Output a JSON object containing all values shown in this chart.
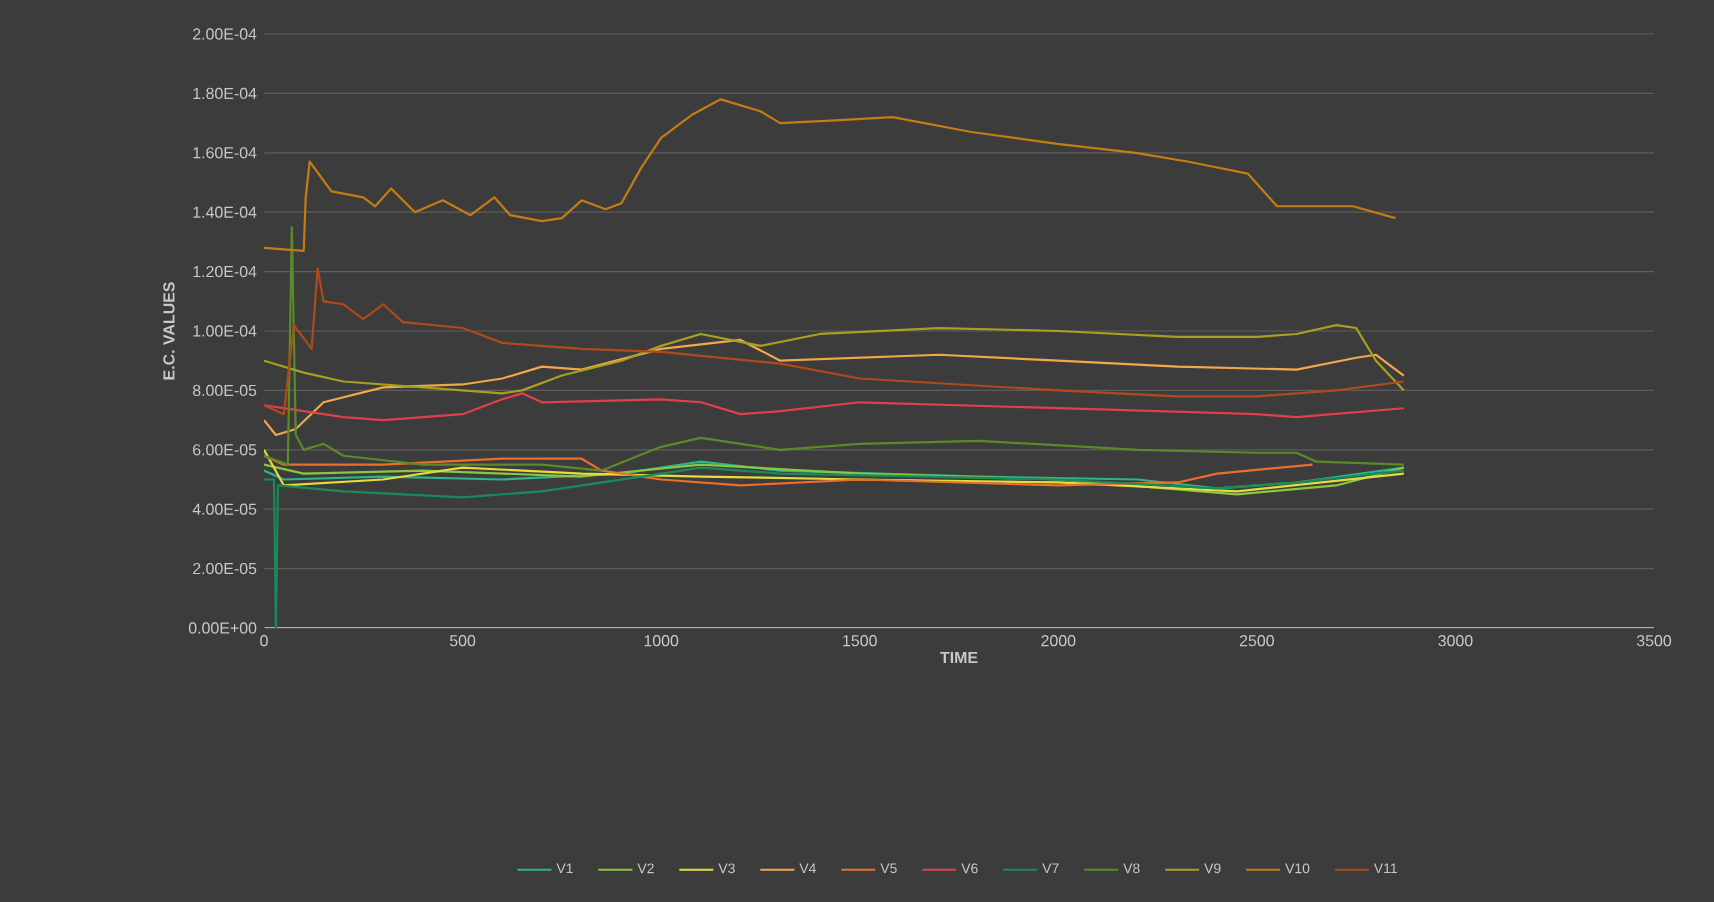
{
  "chart_data": {
    "type": "line",
    "xlabel": "TIME",
    "ylabel": "E.C. VALUES",
    "xlim": [
      0,
      3500
    ],
    "xticks": [
      0,
      500,
      1000,
      1500,
      2000,
      2500,
      3000,
      3500
    ],
    "ylim": [
      0,
      0.0002
    ],
    "yticks": [
      {
        "value": 0,
        "label": "0.00E+00"
      },
      {
        "value": 2e-05,
        "label": "2.00E-05"
      },
      {
        "value": 4e-05,
        "label": "4.00E-05"
      },
      {
        "value": 6e-05,
        "label": "6.00E-05"
      },
      {
        "value": 8e-05,
        "label": "8.00E-05"
      },
      {
        "value": 0.0001,
        "label": "1.00E-04"
      },
      {
        "value": 0.00012,
        "label": "1.20E-04"
      },
      {
        "value": 0.00014,
        "label": "1.40E-04"
      },
      {
        "value": 0.00016,
        "label": "1.60E-04"
      },
      {
        "value": 0.00018,
        "label": "1.80E-04"
      },
      {
        "value": 0.0002,
        "label": "2.00E-04"
      }
    ],
    "grid": "y",
    "legend": "bottom",
    "series": [
      {
        "name": "V1",
        "color": "#2bb58a",
        "x": [
          0,
          50,
          300,
          600,
          900,
          1100,
          1300,
          1800,
          2200,
          2400,
          2600,
          2870
        ],
        "values": [
          5.3e-05,
          5e-05,
          5.1e-05,
          5e-05,
          5.2e-05,
          5.6e-05,
          5.3e-05,
          5.1e-05,
          5e-05,
          4.7e-05,
          4.9e-05,
          5.4e-05
        ]
      },
      {
        "name": "V2",
        "color": "#8cc63f",
        "x": [
          0,
          100,
          400,
          800,
          1100,
          1500,
          2000,
          2450,
          2700,
          2870
        ],
        "values": [
          5.5e-05,
          5.2e-05,
          5.3e-05,
          5.1e-05,
          5.5e-05,
          5.2e-05,
          5e-05,
          4.5e-05,
          4.8e-05,
          5.4e-05
        ]
      },
      {
        "name": "V3",
        "color": "#e3dc3c",
        "x": [
          0,
          50,
          300,
          500,
          800,
          1100,
          1500,
          2000,
          2450,
          2870
        ],
        "values": [
          6e-05,
          4.8e-05,
          5e-05,
          5.4e-05,
          5.2e-05,
          5.1e-05,
          5e-05,
          4.9e-05,
          4.6e-05,
          5.2e-05
        ]
      },
      {
        "name": "V4",
        "color": "#f0a848",
        "x": [
          0,
          30,
          80,
          150,
          300,
          500,
          600,
          700,
          800,
          1000,
          1200,
          1300,
          1500,
          1700,
          2000,
          2300,
          2600,
          2750,
          2800,
          2870
        ],
        "values": [
          7e-05,
          6.5e-05,
          6.7e-05,
          7.6e-05,
          8.1e-05,
          8.2e-05,
          8.4e-05,
          8.8e-05,
          8.7e-05,
          9.4e-05,
          9.7e-05,
          9e-05,
          9.1e-05,
          9.2e-05,
          9e-05,
          8.8e-05,
          8.7e-05,
          9.1e-05,
          9.2e-05,
          8.5e-05
        ]
      },
      {
        "name": "V5",
        "color": "#e8702a",
        "x": [
          0,
          50,
          300,
          600,
          700,
          800,
          850,
          1000,
          1200,
          1500,
          2000,
          2300,
          2400,
          2640
        ],
        "values": [
          5.8e-05,
          5.5e-05,
          5.5e-05,
          5.7e-05,
          5.7e-05,
          5.7e-05,
          5.3e-05,
          5e-05,
          4.8e-05,
          5e-05,
          4.8e-05,
          4.9e-05,
          5.2e-05,
          5.5e-05
        ]
      },
      {
        "name": "V6",
        "color": "#e0404a",
        "x": [
          0,
          100,
          200,
          300,
          500,
          600,
          650,
          700,
          1000,
          1100,
          1200,
          1300,
          1500,
          2000,
          2500,
          2600,
          2870
        ],
        "values": [
          7.5e-05,
          7.3e-05,
          7.1e-05,
          7e-05,
          7.2e-05,
          7.7e-05,
          7.9e-05,
          7.6e-05,
          7.7e-05,
          7.6e-05,
          7.2e-05,
          7.3e-05,
          7.6e-05,
          7.4e-05,
          7.2e-05,
          7.1e-05,
          7.4e-05
        ]
      },
      {
        "name": "V7",
        "color": "#1a8a5a",
        "x": [
          0,
          25,
          30,
          35,
          200,
          500,
          700,
          1000,
          1100,
          1300,
          2000,
          2400,
          2600,
          2870
        ],
        "values": [
          5e-05,
          5e-05,
          0.0,
          4.8e-05,
          4.6e-05,
          4.4e-05,
          4.6e-05,
          5.2e-05,
          5.4e-05,
          5.2e-05,
          5e-05,
          4.7e-05,
          4.9e-05,
          5.3e-05
        ]
      },
      {
        "name": "V8",
        "color": "#5a8a2a",
        "x": [
          0,
          60,
          70,
          80,
          100,
          150,
          200,
          400,
          700,
          850,
          1000,
          1100,
          1300,
          1500,
          1800,
          2200,
          2500,
          2600,
          2650,
          2870
        ],
        "values": [
          5.8e-05,
          5.5e-05,
          0.000135,
          6.5e-05,
          6e-05,
          6.2e-05,
          5.8e-05,
          5.5e-05,
          5.5e-05,
          5.3e-05,
          6.1e-05,
          6.4e-05,
          6e-05,
          6.2e-05,
          6.3e-05,
          6e-05,
          5.9e-05,
          5.9e-05,
          5.6e-05,
          5.5e-05
        ]
      },
      {
        "name": "V9",
        "color": "#a8a020",
        "x": [
          0,
          100,
          200,
          400,
          600,
          650,
          750,
          900,
          1000,
          1100,
          1250,
          1400,
          1700,
          2000,
          2300,
          2500,
          2600,
          2700,
          2750,
          2800,
          2870
        ],
        "values": [
          9e-05,
          8.6e-05,
          8.3e-05,
          8.1e-05,
          7.9e-05,
          8e-05,
          8.5e-05,
          9e-05,
          9.5e-05,
          9.9e-05,
          9.5e-05,
          9.9e-05,
          0.000101,
          0.0001,
          9.8e-05,
          9.8e-05,
          9.9e-05,
          0.000102,
          0.000101,
          9e-05,
          8e-05
        ]
      },
      {
        "name": "V10",
        "color": "#c47c14",
        "x": [
          0,
          100,
          105,
          115,
          170,
          250,
          280,
          320,
          380,
          450,
          520,
          580,
          620,
          700,
          750,
          800,
          860,
          900,
          950,
          1000,
          1080,
          1150,
          1250,
          1300,
          1450,
          1583,
          1781,
          1997,
          2195,
          2328,
          2477,
          2551,
          2742,
          2849
        ],
        "values": [
          0.000128,
          0.000127,
          0.000145,
          0.000157,
          0.000147,
          0.000145,
          0.000142,
          0.000148,
          0.00014,
          0.000144,
          0.000139,
          0.000145,
          0.000139,
          0.000137,
          0.000138,
          0.000144,
          0.000141,
          0.000143,
          0.000155,
          0.000165,
          0.000173,
          0.000178,
          0.000174,
          0.00017,
          0.000171,
          0.000172,
          0.000167,
          0.000163,
          0.00016,
          0.000157,
          0.000153,
          0.000142,
          0.000142,
          0.000138
        ]
      },
      {
        "name": "V11",
        "color": "#b04a1a",
        "x": [
          0,
          50,
          75,
          120,
          135,
          150,
          200,
          250,
          300,
          350,
          500,
          600,
          800,
          1000,
          1300,
          1500,
          2000,
          2300,
          2500,
          2700,
          2870
        ],
        "values": [
          7.5e-05,
          7.2e-05,
          0.000102,
          9.4e-05,
          0.000121,
          0.00011,
          0.000109,
          0.000104,
          0.000109,
          0.000103,
          0.000101,
          9.6e-05,
          9.4e-05,
          9.3e-05,
          8.9e-05,
          8.4e-05,
          8e-05,
          7.8e-05,
          7.8e-05,
          8e-05,
          8.3e-05
        ]
      }
    ]
  }
}
